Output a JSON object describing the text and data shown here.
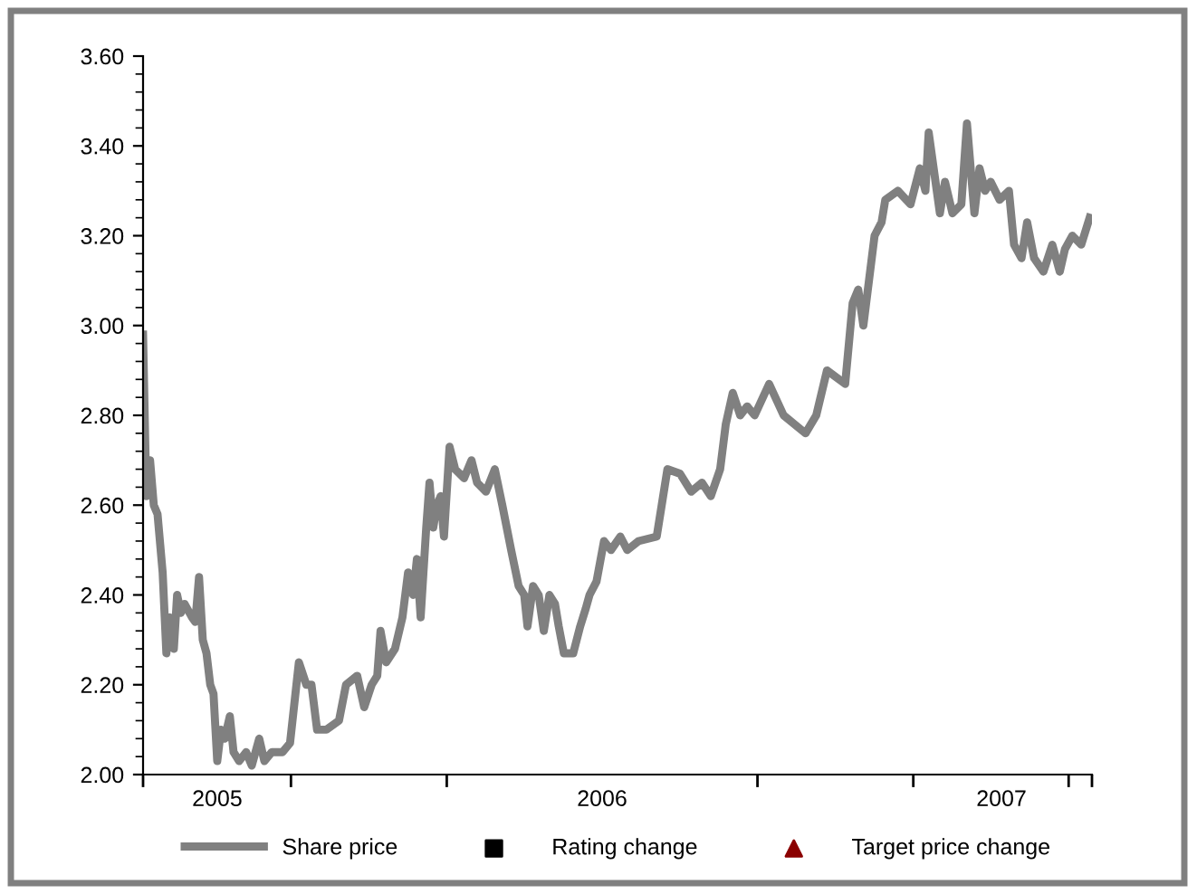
{
  "chart_data": {
    "type": "line",
    "xlim": [
      2005.016,
      2007.05
    ],
    "ylim": [
      2.0,
      3.6
    ],
    "xticks": [
      {
        "value": 2005.016,
        "label": null
      },
      {
        "value": 2005.175,
        "label": "2005"
      },
      {
        "value": 2005.333,
        "label": null
      },
      {
        "value": 2005.667,
        "label": null
      },
      {
        "value": 2006.0,
        "label": "2006"
      },
      {
        "value": 2006.333,
        "label": null
      },
      {
        "value": 2006.667,
        "label": null
      },
      {
        "value": 2006.856,
        "label": "2007"
      },
      {
        "value": 2007.0,
        "label": null
      },
      {
        "value": 2007.05,
        "label": null
      }
    ],
    "yticks": [
      {
        "value": 2.0,
        "label": "2.00"
      },
      {
        "value": 2.04,
        "label": null
      },
      {
        "value": 2.08,
        "label": null
      },
      {
        "value": 2.12,
        "label": null
      },
      {
        "value": 2.16,
        "label": null
      },
      {
        "value": 2.2,
        "label": "2.20"
      },
      {
        "value": 2.24,
        "label": null
      },
      {
        "value": 2.28,
        "label": null
      },
      {
        "value": 2.32,
        "label": null
      },
      {
        "value": 2.36,
        "label": null
      },
      {
        "value": 2.4,
        "label": "2.40"
      },
      {
        "value": 2.44,
        "label": null
      },
      {
        "value": 2.48,
        "label": null
      },
      {
        "value": 2.52,
        "label": null
      },
      {
        "value": 2.56,
        "label": null
      },
      {
        "value": 2.6,
        "label": "2.60"
      },
      {
        "value": 2.64,
        "label": null
      },
      {
        "value": 2.68,
        "label": null
      },
      {
        "value": 2.72,
        "label": null
      },
      {
        "value": 2.76,
        "label": null
      },
      {
        "value": 2.8,
        "label": "2.80"
      },
      {
        "value": 2.84,
        "label": null
      },
      {
        "value": 2.88,
        "label": null
      },
      {
        "value": 2.92,
        "label": null
      },
      {
        "value": 2.96,
        "label": null
      },
      {
        "value": 3.0,
        "label": "3.00"
      },
      {
        "value": 3.04,
        "label": null
      },
      {
        "value": 3.08,
        "label": null
      },
      {
        "value": 3.12,
        "label": null
      },
      {
        "value": 3.16,
        "label": null
      },
      {
        "value": 3.2,
        "label": "3.20"
      },
      {
        "value": 3.24,
        "label": null
      },
      {
        "value": 3.28,
        "label": null
      },
      {
        "value": 3.32,
        "label": null
      },
      {
        "value": 3.36,
        "label": null
      },
      {
        "value": 3.4,
        "label": "3.40"
      },
      {
        "value": 3.44,
        "label": null
      },
      {
        "value": 3.48,
        "label": null
      },
      {
        "value": 3.52,
        "label": null
      },
      {
        "value": 3.56,
        "label": null
      },
      {
        "value": 3.6,
        "label": "3.60"
      }
    ],
    "grid": false,
    "legend": "bottom",
    "marker": "none",
    "line_style": "solid",
    "series": [
      {
        "name": "Share price",
        "color": "#808080",
        "x": [
          2005.016,
          2005.023,
          2005.031,
          2005.039,
          2005.047,
          2005.058,
          2005.066,
          2005.074,
          2005.082,
          2005.089,
          2005.097,
          2005.105,
          2005.121,
          2005.128,
          2005.136,
          2005.144,
          2005.152,
          2005.16,
          2005.167,
          2005.175,
          2005.183,
          2005.191,
          2005.202,
          2005.21,
          2005.222,
          2005.237,
          2005.249,
          2005.265,
          2005.276,
          2005.292,
          2005.315,
          2005.331,
          2005.35,
          2005.366,
          2005.377,
          2005.389,
          2005.409,
          2005.436,
          2005.451,
          2005.475,
          2005.49,
          2005.506,
          2005.518,
          2005.525,
          2005.537,
          2005.556,
          2005.572,
          2005.584,
          2005.595,
          2005.603,
          2005.611,
          2005.623,
          2005.63,
          2005.638,
          2005.646,
          2005.654,
          2005.661,
          2005.673,
          2005.685,
          2005.704,
          2005.72,
          2005.732,
          2005.751,
          2005.77,
          2005.786,
          2005.805,
          2005.821,
          2005.833,
          2005.84,
          2005.852,
          2005.864,
          2005.875,
          2005.887,
          2005.899,
          2005.907,
          2005.918,
          2005.938,
          2005.953,
          2005.965,
          2005.973,
          2005.988,
          2006.004,
          2006.019,
          2006.039,
          2006.054,
          2006.078,
          2006.117,
          2006.14,
          2006.167,
          2006.191,
          2006.214,
          2006.233,
          2006.253,
          2006.265,
          2006.28,
          2006.296,
          2006.311,
          2006.327,
          2006.358,
          2006.389,
          2006.436,
          2006.459,
          2006.482,
          2006.521,
          2006.537,
          2006.549,
          2006.56,
          2006.584,
          2006.599,
          2006.607,
          2006.634,
          2006.661,
          2006.681,
          2006.693,
          2006.7,
          2006.724,
          2006.735,
          2006.751,
          2006.77,
          2006.782,
          2006.798,
          2006.809,
          2006.821,
          2006.833,
          2006.852,
          2006.872,
          2006.883,
          2006.899,
          2006.911,
          2006.926,
          2006.946,
          2006.965,
          2006.981,
          2006.992,
          2007.008,
          2007.027,
          2007.045
        ],
        "values": [
          2.98,
          2.62,
          2.7,
          2.6,
          2.58,
          2.45,
          2.27,
          2.35,
          2.28,
          2.4,
          2.36,
          2.38,
          2.35,
          2.34,
          2.44,
          2.3,
          2.27,
          2.2,
          2.18,
          2.03,
          2.1,
          2.08,
          2.13,
          2.05,
          2.03,
          2.05,
          2.02,
          2.08,
          2.03,
          2.05,
          2.05,
          2.07,
          2.25,
          2.2,
          2.2,
          2.1,
          2.1,
          2.12,
          2.2,
          2.22,
          2.15,
          2.2,
          2.22,
          2.32,
          2.25,
          2.28,
          2.35,
          2.45,
          2.4,
          2.48,
          2.35,
          2.55,
          2.65,
          2.55,
          2.6,
          2.62,
          2.53,
          2.73,
          2.68,
          2.66,
          2.7,
          2.65,
          2.63,
          2.68,
          2.6,
          2.5,
          2.42,
          2.4,
          2.33,
          2.42,
          2.4,
          2.32,
          2.4,
          2.38,
          2.33,
          2.27,
          2.27,
          2.33,
          2.37,
          2.4,
          2.43,
          2.52,
          2.5,
          2.53,
          2.5,
          2.52,
          2.53,
          2.68,
          2.67,
          2.63,
          2.65,
          2.62,
          2.68,
          2.78,
          2.85,
          2.8,
          2.82,
          2.8,
          2.87,
          2.8,
          2.76,
          2.8,
          2.9,
          2.87,
          3.05,
          3.08,
          3.0,
          3.2,
          3.23,
          3.28,
          3.3,
          3.27,
          3.35,
          3.3,
          3.43,
          3.25,
          3.32,
          3.25,
          3.27,
          3.45,
          3.25,
          3.35,
          3.3,
          3.32,
          3.28,
          3.3,
          3.18,
          3.15,
          3.23,
          3.15,
          3.12,
          3.18,
          3.12,
          3.17,
          3.2,
          3.18,
          3.24
        ]
      },
      {
        "name": "Rating change",
        "type": "scatter",
        "marker": "square",
        "color": "#000000"
      },
      {
        "name": "Target price change",
        "type": "scatter",
        "marker": "triangle",
        "color": "#8b0000"
      }
    ]
  }
}
